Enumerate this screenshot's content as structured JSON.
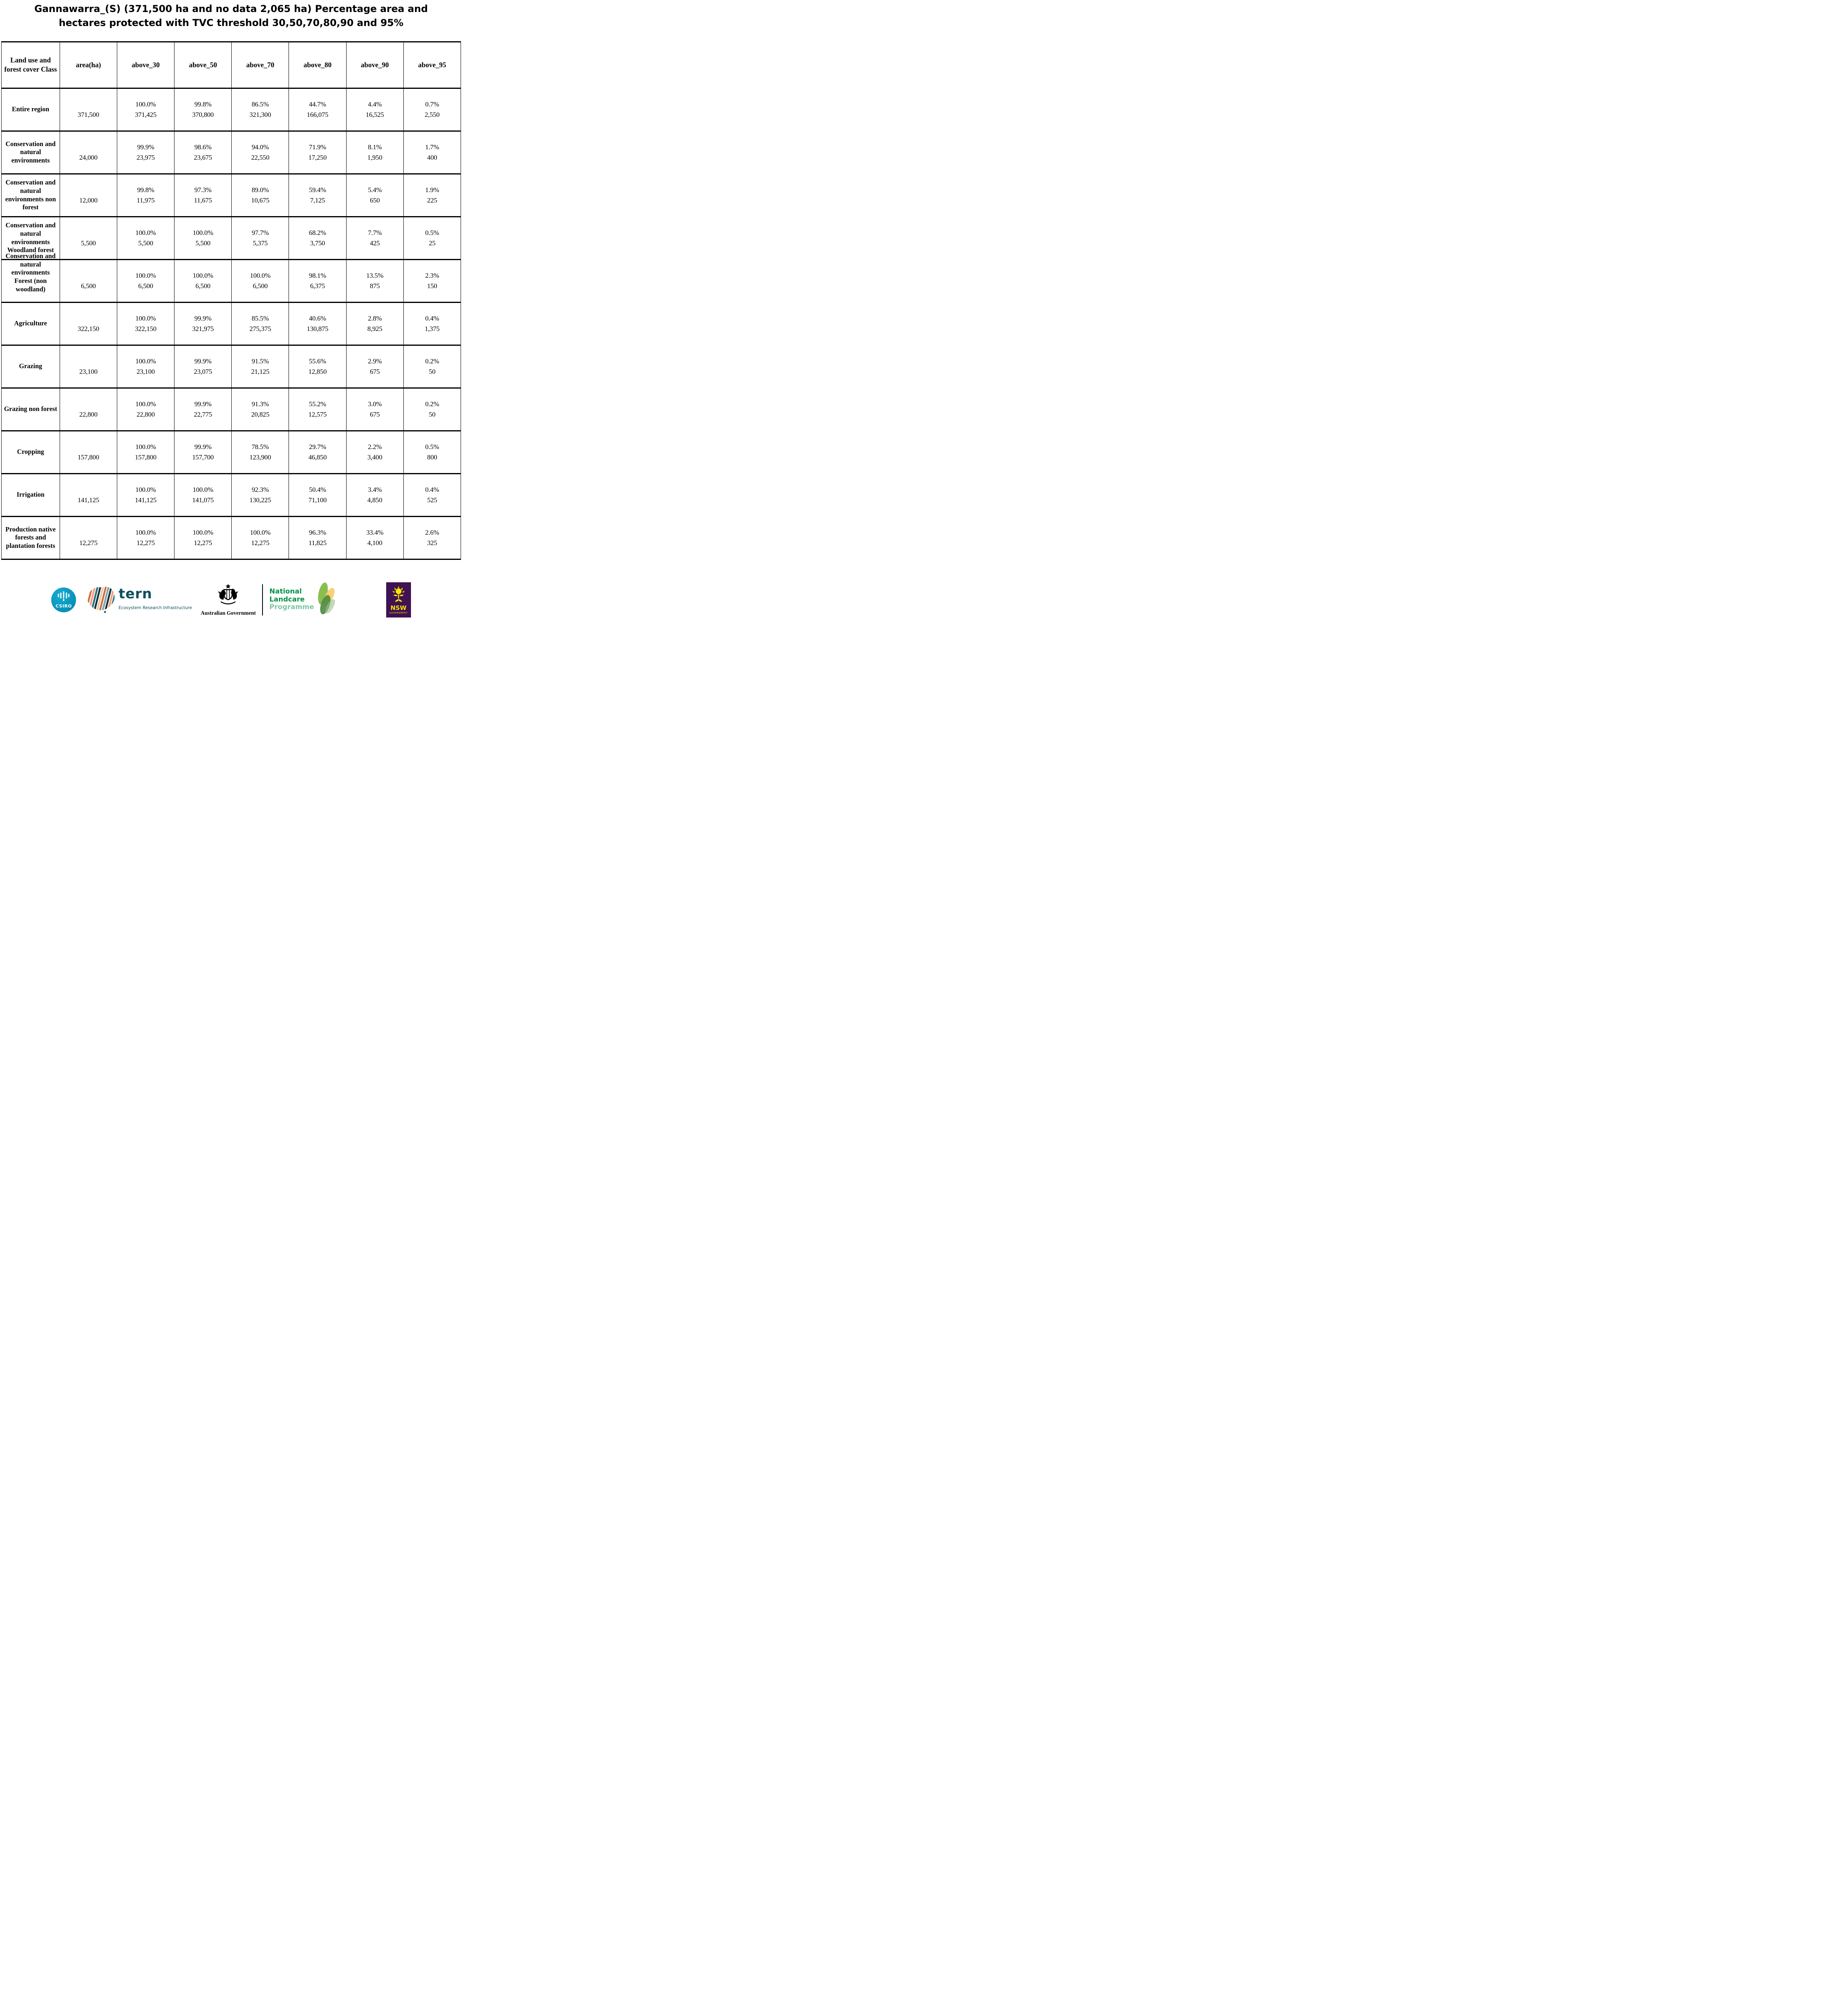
{
  "title_lines": [
    "Gannawarra_(S) (371,500 ha and no data 2,065 ha) Percentage area and",
    "hectares protected with TVC threshold 30,50,70,80,90 and 95%"
  ],
  "chart_data": {
    "type": "table",
    "region": "Gannawarra_(S)",
    "total_area_ha": "371,500",
    "no_data_ha": "2,065",
    "tvc_thresholds": [
      30,
      50,
      70,
      80,
      90,
      95
    ],
    "columns": [
      "Land use and forest cover Class",
      "area(ha)",
      "above_30",
      "above_50",
      "above_70",
      "above_80",
      "above_90",
      "above_95"
    ],
    "rows": [
      {
        "label": "Entire region",
        "area": "371,500",
        "cells": [
          {
            "pct": "100.0%",
            "ha": "371,425"
          },
          {
            "pct": "99.8%",
            "ha": "370,800"
          },
          {
            "pct": "86.5%",
            "ha": "321,300"
          },
          {
            "pct": "44.7%",
            "ha": "166,075"
          },
          {
            "pct": "4.4%",
            "ha": "16,525"
          },
          {
            "pct": "0.7%",
            "ha": "2,550"
          }
        ]
      },
      {
        "label": "Conservation and natural environments",
        "area": "24,000",
        "cells": [
          {
            "pct": "99.9%",
            "ha": "23,975"
          },
          {
            "pct": "98.6%",
            "ha": "23,675"
          },
          {
            "pct": "94.0%",
            "ha": "22,550"
          },
          {
            "pct": "71.9%",
            "ha": "17,250"
          },
          {
            "pct": "8.1%",
            "ha": "1,950"
          },
          {
            "pct": "1.7%",
            "ha": "400"
          }
        ]
      },
      {
        "label": "Conservation and natural environments non forest",
        "area": "12,000",
        "cells": [
          {
            "pct": "99.8%",
            "ha": "11,975"
          },
          {
            "pct": "97.3%",
            "ha": "11,675"
          },
          {
            "pct": "89.0%",
            "ha": "10,675"
          },
          {
            "pct": "59.4%",
            "ha": "7,125"
          },
          {
            "pct": "5.4%",
            "ha": "650"
          },
          {
            "pct": "1.9%",
            "ha": "225"
          }
        ]
      },
      {
        "label": "Conservation and natural environments Woodland forest",
        "area": "5,500",
        "cells": [
          {
            "pct": "100.0%",
            "ha": "5,500"
          },
          {
            "pct": "100.0%",
            "ha": "5,500"
          },
          {
            "pct": "97.7%",
            "ha": "5,375"
          },
          {
            "pct": "68.2%",
            "ha": "3,750"
          },
          {
            "pct": "7.7%",
            "ha": "425"
          },
          {
            "pct": "0.5%",
            "ha": "25"
          }
        ]
      },
      {
        "label": "Conservation and natural environments Forest (non woodland)",
        "area": "6,500",
        "cells": [
          {
            "pct": "100.0%",
            "ha": "6,500"
          },
          {
            "pct": "100.0%",
            "ha": "6,500"
          },
          {
            "pct": "100.0%",
            "ha": "6,500"
          },
          {
            "pct": "98.1%",
            "ha": "6,375"
          },
          {
            "pct": "13.5%",
            "ha": "875"
          },
          {
            "pct": "2.3%",
            "ha": "150"
          }
        ]
      },
      {
        "label": "Agriculture",
        "area": "322,150",
        "cells": [
          {
            "pct": "100.0%",
            "ha": "322,150"
          },
          {
            "pct": "99.9%",
            "ha": "321,975"
          },
          {
            "pct": "85.5%",
            "ha": "275,375"
          },
          {
            "pct": "40.6%",
            "ha": "130,875"
          },
          {
            "pct": "2.8%",
            "ha": "8,925"
          },
          {
            "pct": "0.4%",
            "ha": "1,375"
          }
        ]
      },
      {
        "label": "Grazing",
        "area": "23,100",
        "cells": [
          {
            "pct": "100.0%",
            "ha": "23,100"
          },
          {
            "pct": "99.9%",
            "ha": "23,075"
          },
          {
            "pct": "91.5%",
            "ha": "21,125"
          },
          {
            "pct": "55.6%",
            "ha": "12,850"
          },
          {
            "pct": "2.9%",
            "ha": "675"
          },
          {
            "pct": "0.2%",
            "ha": "50"
          }
        ]
      },
      {
        "label": "Grazing non forest",
        "area": "22,800",
        "cells": [
          {
            "pct": "100.0%",
            "ha": "22,800"
          },
          {
            "pct": "99.9%",
            "ha": "22,775"
          },
          {
            "pct": "91.3%",
            "ha": "20,825"
          },
          {
            "pct": "55.2%",
            "ha": "12,575"
          },
          {
            "pct": "3.0%",
            "ha": "675"
          },
          {
            "pct": "0.2%",
            "ha": "50"
          }
        ]
      },
      {
        "label": "Cropping",
        "area": "157,800",
        "cells": [
          {
            "pct": "100.0%",
            "ha": "157,800"
          },
          {
            "pct": "99.9%",
            "ha": "157,700"
          },
          {
            "pct": "78.5%",
            "ha": "123,900"
          },
          {
            "pct": "29.7%",
            "ha": "46,850"
          },
          {
            "pct": "2.2%",
            "ha": "3,400"
          },
          {
            "pct": "0.5%",
            "ha": "800"
          }
        ]
      },
      {
        "label": "Irrigation",
        "area": "141,125",
        "cells": [
          {
            "pct": "100.0%",
            "ha": "141,125"
          },
          {
            "pct": "100.0%",
            "ha": "141,075"
          },
          {
            "pct": "92.3%",
            "ha": "130,225"
          },
          {
            "pct": "50.4%",
            "ha": "71,100"
          },
          {
            "pct": "3.4%",
            "ha": "4,850"
          },
          {
            "pct": "0.4%",
            "ha": "525"
          }
        ]
      },
      {
        "label": "Production native forests and plantation forests",
        "area": "12,275",
        "cells": [
          {
            "pct": "100.0%",
            "ha": "12,275"
          },
          {
            "pct": "100.0%",
            "ha": "12,275"
          },
          {
            "pct": "100.0%",
            "ha": "12,275"
          },
          {
            "pct": "96.3%",
            "ha": "11,825"
          },
          {
            "pct": "33.4%",
            "ha": "4,100"
          },
          {
            "pct": "2.6%",
            "ha": "325"
          }
        ]
      }
    ]
  },
  "logos": {
    "csiro": {
      "label": "CSIRO",
      "color": "#0a9bc1"
    },
    "tern": {
      "wordmark": "tern",
      "tagline": "Ecosystem Research Infrastructure",
      "color": "#0d4f5c"
    },
    "australian_government": {
      "label": "Australian Government"
    },
    "landcare": {
      "line1": "National",
      "line2": "Landcare",
      "line3": "Programme",
      "green": "#009245",
      "light_green": "#7cc7a1"
    },
    "nsw": {
      "label": "NSW",
      "sublabel": "GOVERNMENT",
      "purple": "#3f1252",
      "yellow": "#ffe600"
    }
  }
}
